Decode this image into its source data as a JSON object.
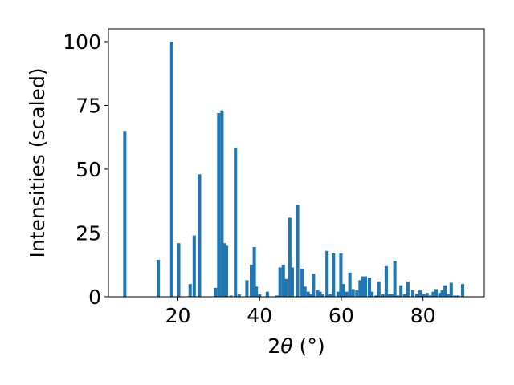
{
  "chart_data": {
    "type": "bar",
    "xlabel_prefix": "2",
    "xlabel_symbol": "θ",
    "xlabel_unit": "(°)",
    "ylabel": "Intensities (scaled)",
    "xlim": [
      3,
      95
    ],
    "ylim": [
      0,
      105
    ],
    "xticks": [
      20,
      40,
      60,
      80
    ],
    "yticks": [
      0,
      25,
      50,
      75,
      100
    ],
    "bar_color": "#1f77b4",
    "grid": false,
    "x": [
      7.0,
      15.2,
      18.5,
      20.2,
      23.0,
      24.0,
      25.3,
      29.2,
      30.0,
      30.8,
      31.4,
      31.9,
      33.0,
      34.1,
      35.0,
      36.9,
      38.0,
      38.7,
      39.2,
      40.0,
      41.9,
      44.2,
      45.0,
      45.8,
      46.5,
      47.4,
      48.0,
      49.3,
      50.4,
      51.1,
      51.9,
      52.5,
      53.2,
      54.2,
      54.8,
      55.5,
      56.5,
      57.3,
      58.1,
      59.2,
      59.9,
      60.5,
      61.3,
      62.1,
      62.9,
      63.8,
      64.6,
      65.2,
      65.9,
      66.9,
      67.5,
      68.5,
      69.2,
      70.2,
      71.0,
      71.8,
      72.3,
      73.1,
      73.8,
      74.6,
      75.5,
      76.3,
      77.5,
      78.5,
      79.3,
      80.2,
      81.0,
      81.8,
      82.5,
      83.2,
      84.1,
      84.7,
      85.4,
      86.1,
      86.9,
      87.8,
      88.6,
      89.7
    ],
    "values": [
      65,
      14.5,
      100,
      21,
      5,
      24,
      48,
      3.5,
      72,
      73,
      21,
      20,
      0.5,
      58.5,
      1,
      6.5,
      12.5,
      19.5,
      4,
      1,
      2,
      0.5,
      11.5,
      12.5,
      7,
      31,
      11.5,
      36,
      11,
      4,
      2,
      1,
      9,
      2.5,
      2,
      1,
      18,
      1,
      17,
      2,
      17,
      5,
      2,
      9.5,
      3,
      2.5,
      6.5,
      8,
      8,
      7.5,
      2,
      0.5,
      6,
      1,
      12,
      1,
      1,
      14,
      0.5,
      4.5,
      1,
      6,
      2.5,
      1,
      2.5,
      1,
      1.5,
      0.5,
      2,
      3,
      1.5,
      2.5,
      4.5,
      1,
      5.5,
      0.5,
      0.5,
      5
    ]
  }
}
